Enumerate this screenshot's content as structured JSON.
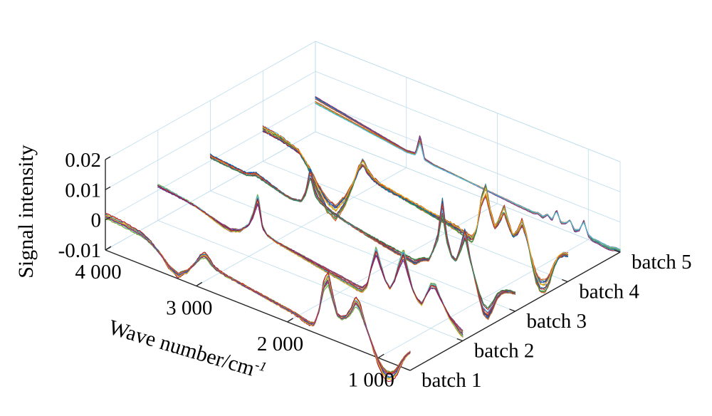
{
  "chart_data": {
    "type": "line",
    "title": "",
    "xlabel": "Wave number/cm",
    "xlabel_superscript": "-1",
    "ylabel": "Signal intensity",
    "x_ticks": [
      {
        "value": 4000,
        "label": "4 000"
      },
      {
        "value": 3000,
        "label": "3 000"
      },
      {
        "value": 2000,
        "label": "2 000"
      },
      {
        "value": 1000,
        "label": "1 000"
      }
    ],
    "z_ticks": [
      {
        "value": 0.02,
        "label": "0.02"
      },
      {
        "value": 0.01,
        "label": "0.01"
      },
      {
        "value": 0,
        "label": "0"
      },
      {
        "value": -0.01,
        "label": "-0.01"
      }
    ],
    "xlim": [
      4000,
      650
    ],
    "zlim": [
      -0.01,
      0.02
    ],
    "categories": [
      "batch 1",
      "batch 2",
      "batch 3",
      "batch 4",
      "batch 5"
    ],
    "grid": true,
    "palette": [
      "#0072bd",
      "#d95319",
      "#edb120",
      "#7e2f8e",
      "#77ac30",
      "#4dbeee",
      "#a2142f",
      "#1f4e9c",
      "#c03a2b",
      "#2e8b57"
    ],
    "series": [
      {
        "name": "batch 1",
        "x": [
          4000,
          3800,
          3600,
          3500,
          3400,
          3300,
          3200,
          3100,
          3000,
          2950,
          2900,
          2850,
          2800,
          2700,
          2500,
          2300,
          2100,
          1900,
          1800,
          1750,
          1700,
          1650,
          1600,
          1550,
          1500,
          1450,
          1400,
          1350,
          1300,
          1250,
          1200,
          1150,
          1100,
          1050,
          1000,
          950,
          900,
          850,
          800,
          750,
          700,
          650
        ],
        "y": [
          0.0015,
          0.001,
          0.0,
          -0.0015,
          -0.004,
          -0.0075,
          -0.009,
          -0.0065,
          -0.002,
          0.0005,
          0.0015,
          0.0,
          -0.0015,
          -0.0025,
          -0.0035,
          -0.0045,
          -0.0055,
          -0.0065,
          -0.0075,
          -0.0078,
          -0.0072,
          -0.002,
          0.007,
          0.01,
          0.004,
          -0.001,
          -0.0015,
          -0.0005,
          0.002,
          0.006,
          0.0045,
          0.0,
          -0.004,
          -0.008,
          -0.0115,
          -0.014,
          -0.015,
          -0.0145,
          -0.0125,
          -0.009,
          -0.006,
          -0.004
        ],
        "spread": 0.0015
      },
      {
        "name": "batch 2",
        "x": [
          4000,
          3800,
          3600,
          3500,
          3400,
          3300,
          3200,
          3100,
          3000,
          2950,
          2900,
          2850,
          2800,
          2700,
          2500,
          2300,
          2100,
          1900,
          1800,
          1750,
          1700,
          1650,
          1600,
          1550,
          1500,
          1450,
          1400,
          1350,
          1300,
          1250,
          1200,
          1150,
          1100,
          1050,
          1000,
          950,
          900,
          850,
          800,
          750,
          700,
          650
        ],
        "y": [
          0.0015,
          0.0008,
          -0.0002,
          -0.001,
          -0.002,
          -0.003,
          -0.0035,
          -0.0025,
          0.0005,
          0.0045,
          0.0105,
          0.0015,
          -0.0005,
          -0.0015,
          -0.0025,
          -0.0035,
          -0.0045,
          -0.0055,
          -0.006,
          -0.006,
          -0.004,
          0.003,
          0.0085,
          0.004,
          0.0,
          -0.002,
          0.001,
          0.0065,
          0.011,
          0.0055,
          0.0005,
          -0.002,
          -0.003,
          0.0005,
          0.004,
          0.0045,
          0.0015,
          -0.001,
          -0.0035,
          -0.005,
          -0.0065,
          -0.0075
        ],
        "spread": 0.0012
      },
      {
        "name": "batch 3",
        "x": [
          4000,
          3800,
          3600,
          3500,
          3400,
          3300,
          3200,
          3100,
          3000,
          2950,
          2900,
          2850,
          2800,
          2700,
          2500,
          2300,
          2100,
          1900,
          1800,
          1750,
          1700,
          1650,
          1600,
          1550,
          1500,
          1450,
          1400,
          1350,
          1300,
          1250,
          1200,
          1150,
          1100,
          1050,
          1000,
          950,
          900,
          850,
          800,
          750,
          700,
          650
        ],
        "y": [
          0.0015,
          0.0008,
          0.0003,
          0.0015,
          0.0005,
          -0.0005,
          -0.0015,
          -0.002,
          -0.0015,
          0.002,
          0.0095,
          0.003,
          0.001,
          -0.0008,
          -0.0025,
          -0.0038,
          -0.005,
          -0.006,
          -0.0065,
          -0.0068,
          -0.0055,
          -0.0045,
          -0.0042,
          -0.0005,
          0.0045,
          0.0155,
          0.005,
          0.0,
          -0.001,
          0.0035,
          0.0095,
          0.002,
          -0.0035,
          -0.009,
          -0.0135,
          -0.0145,
          -0.0115,
          -0.0075,
          -0.0055,
          -0.0045,
          -0.004,
          -0.004
        ],
        "spread": 0.0014
      },
      {
        "name": "batch 4",
        "x": [
          4000,
          3800,
          3600,
          3500,
          3400,
          3300,
          3200,
          3100,
          3000,
          2950,
          2900,
          2850,
          2800,
          2700,
          2500,
          2300,
          2100,
          1900,
          1800,
          1750,
          1700,
          1650,
          1600,
          1550,
          1500,
          1450,
          1400,
          1350,
          1300,
          1250,
          1200,
          1150,
          1100,
          1050,
          1000,
          950,
          900,
          850,
          800,
          750,
          700,
          650
        ],
        "y": [
          0.001,
          0.0,
          -0.002,
          -0.006,
          -0.0115,
          -0.016,
          -0.0175,
          -0.0125,
          -0.005,
          0.0,
          0.003,
          0.0005,
          -0.001,
          -0.0025,
          -0.0035,
          -0.0045,
          -0.0055,
          -0.0065,
          -0.0075,
          -0.008,
          -0.0085,
          -0.0045,
          0.0055,
          0.01,
          0.003,
          -0.0015,
          0.0015,
          0.006,
          0.0015,
          -0.002,
          0.0,
          0.004,
          -0.0005,
          -0.007,
          -0.0125,
          -0.015,
          -0.0145,
          -0.0115,
          -0.0065,
          -0.003,
          -0.0015,
          -0.001
        ],
        "spread": 0.0022
      },
      {
        "name": "batch 5",
        "x": [
          4000,
          3800,
          3600,
          3400,
          3200,
          3000,
          2900,
          2850,
          2800,
          2700,
          2500,
          2300,
          2100,
          1900,
          1800,
          1700,
          1600,
          1550,
          1500,
          1450,
          1400,
          1350,
          1300,
          1250,
          1200,
          1150,
          1100,
          1050,
          1000,
          950,
          900,
          850,
          800,
          750,
          700,
          650
        ],
        "y": [
          0.0005,
          -0.0005,
          -0.0015,
          -0.0025,
          -0.0035,
          -0.0045,
          -0.0042,
          0.0015,
          -0.0048,
          -0.0055,
          -0.006,
          -0.0065,
          -0.007,
          -0.0075,
          -0.0078,
          -0.008,
          -0.0082,
          -0.0078,
          -0.0085,
          -0.007,
          -0.0082,
          -0.0045,
          -0.008,
          -0.0075,
          -0.006,
          -0.0088,
          -0.008,
          -0.0045,
          -0.0085,
          -0.0095,
          -0.0095,
          -0.0098,
          -0.01,
          -0.01,
          -0.0095,
          -0.0095
        ],
        "spread": 0.0006
      }
    ]
  }
}
